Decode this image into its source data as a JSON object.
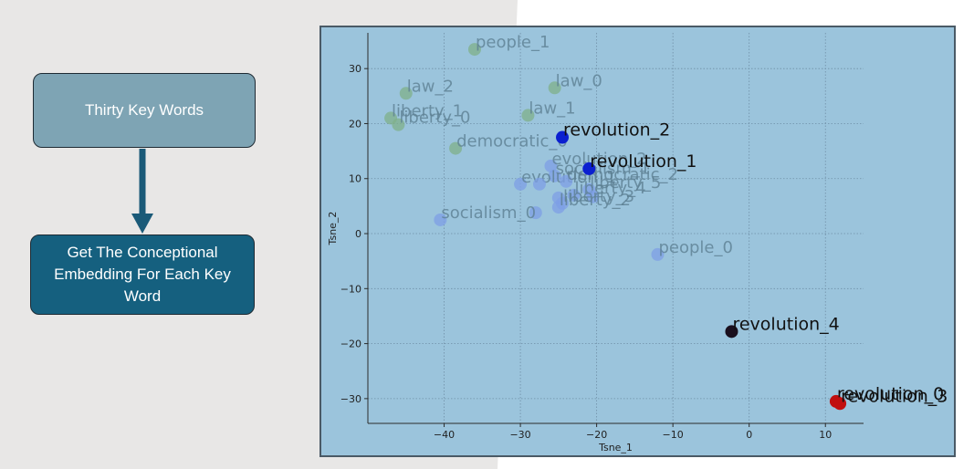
{
  "flowchart": {
    "box1_label": "Thirty Key Words",
    "box2_label": "Get The Conceptional Embedding For Each Key Word"
  },
  "colors": {
    "background_grey": "#e8e7e6",
    "box1_fill": "#7ea4b4",
    "box2_fill": "#15607f",
    "arrow": "#1a5a78",
    "plot_background": "#9bc4dc",
    "cluster_green": "#7fb08a",
    "cluster_blue": "#7d9fe6",
    "revolution_navy": "#0a1fd0",
    "revolution_black": "#1a0f1e",
    "revolution_red": "#c10f0f"
  },
  "chart_data": {
    "type": "scatter",
    "xlabel": "Tsne_1",
    "ylabel": "Tsne_2",
    "xlim": [
      -50,
      15
    ],
    "ylim": [
      -34.5,
      36.5
    ],
    "xticks": [
      -40,
      -30,
      -20,
      -10,
      0,
      10
    ],
    "yticks": [
      30,
      20,
      10,
      0,
      -10,
      -20,
      -30
    ],
    "grid": true,
    "points": [
      {
        "label": "people_1",
        "x": -36,
        "y": 33.5,
        "group": "green"
      },
      {
        "label": "law_0",
        "x": -25.5,
        "y": 26.5,
        "group": "green"
      },
      {
        "label": "law_2",
        "x": -45,
        "y": 25.5,
        "group": "green"
      },
      {
        "label": "law_1",
        "x": -29,
        "y": 21.5,
        "group": "green"
      },
      {
        "label": "liberty_1",
        "x": -47,
        "y": 21,
        "group": "green"
      },
      {
        "label": "liberty_0",
        "x": -46,
        "y": 19.8,
        "group": "green"
      },
      {
        "label": "democratic_0",
        "x": -38.5,
        "y": 15.5,
        "group": "green"
      },
      {
        "label": "evolution_2",
        "x": -26,
        "y": 12.3,
        "group": "blue"
      },
      {
        "label": "socialism_1",
        "x": -25.5,
        "y": 10.5,
        "group": "blue"
      },
      {
        "label": "evolution_1",
        "x": -30,
        "y": 9,
        "group": "blue"
      },
      {
        "label": "",
        "x": -27.5,
        "y": 9,
        "group": "blue"
      },
      {
        "label": "democratic_2",
        "x": -24,
        "y": 9.5,
        "group": "blue"
      },
      {
        "label": "liberty_5",
        "x": -21,
        "y": 8,
        "group": "blue"
      },
      {
        "label": "liberty_4",
        "x": -23,
        "y": 7,
        "group": "blue"
      },
      {
        "label": "",
        "x": -25,
        "y": 6.5,
        "group": "blue"
      },
      {
        "label": "",
        "x": -20.5,
        "y": 6.7,
        "group": "blue"
      },
      {
        "label": "liberty_3",
        "x": -24.5,
        "y": 5.5,
        "group": "blue"
      },
      {
        "label": "liberty_2",
        "x": -25,
        "y": 4.8,
        "group": "blue"
      },
      {
        "label": "",
        "x": -28,
        "y": 3.8,
        "group": "blue"
      },
      {
        "label": "socialism_0",
        "x": -40.5,
        "y": 2.5,
        "group": "blue"
      },
      {
        "label": "people_0",
        "x": -12,
        "y": -3.8,
        "group": "blue"
      },
      {
        "label": "revolution_2",
        "x": -24.5,
        "y": 17.5,
        "group": "revolution_navy"
      },
      {
        "label": "revolution_1",
        "x": -21,
        "y": 11.8,
        "group": "revolution_navy"
      },
      {
        "label": "revolution_4",
        "x": -2.3,
        "y": -17.8,
        "group": "revolution_black"
      },
      {
        "label": "revolution_0",
        "x": 11.4,
        "y": -30.5,
        "group": "revolution_red"
      },
      {
        "label": "revolution_3",
        "x": 11.9,
        "y": -30.9,
        "group": "revolution_red"
      }
    ]
  }
}
